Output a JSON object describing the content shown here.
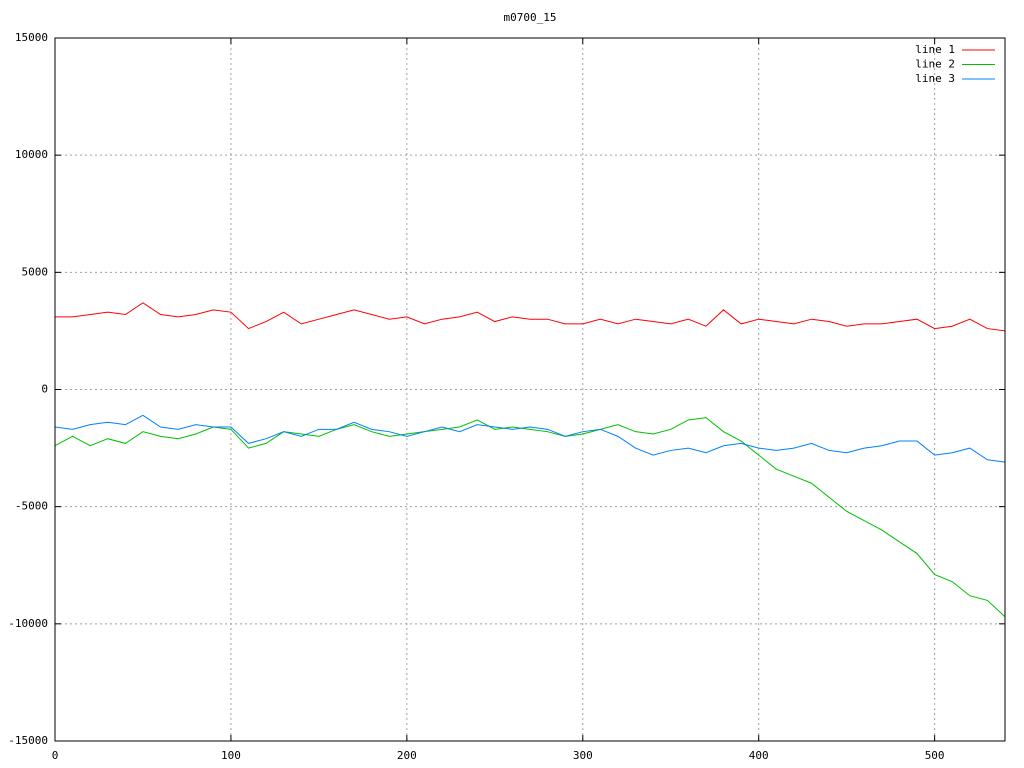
{
  "chart_data": {
    "type": "line",
    "title": "m0700_15",
    "x": [
      0,
      10,
      20,
      30,
      40,
      50,
      60,
      70,
      80,
      90,
      100,
      110,
      120,
      130,
      140,
      150,
      160,
      170,
      180,
      190,
      200,
      210,
      220,
      230,
      240,
      250,
      260,
      270,
      280,
      290,
      300,
      310,
      320,
      330,
      340,
      350,
      360,
      370,
      380,
      390,
      400,
      410,
      420,
      430,
      440,
      450,
      460,
      470,
      480,
      490,
      500,
      510,
      520,
      530,
      540
    ],
    "series": [
      {
        "name": "line 1",
        "color": "#ff0000",
        "values": [
          3100,
          3100,
          3200,
          3300,
          3200,
          3700,
          3200,
          3100,
          3200,
          3400,
          3300,
          2600,
          2900,
          3300,
          2800,
          3000,
          3200,
          3400,
          3200,
          3000,
          3100,
          2800,
          3000,
          3100,
          3300,
          2900,
          3100,
          3000,
          3000,
          2800,
          2800,
          3000,
          2800,
          3000,
          2900,
          2800,
          3000,
          2700,
          3400,
          2800,
          3000,
          2900,
          2800,
          3000,
          2900,
          2700,
          2800,
          2800,
          2900,
          3000,
          2600,
          2700,
          3000,
          2600,
          2500
        ]
      },
      {
        "name": "line 2",
        "color": "#00c000",
        "values": [
          -2400,
          -2000,
          -2400,
          -2100,
          -2300,
          -1800,
          -2000,
          -2100,
          -1900,
          -1600,
          -1700,
          -2500,
          -2300,
          -1800,
          -1900,
          -2000,
          -1700,
          -1500,
          -1800,
          -2000,
          -1900,
          -1800,
          -1700,
          -1600,
          -1300,
          -1700,
          -1600,
          -1700,
          -1800,
          -2000,
          -1900,
          -1700,
          -1500,
          -1800,
          -1900,
          -1700,
          -1300,
          -1200,
          -1800,
          -2200,
          -2800,
          -3400,
          -3700,
          -4000,
          -4600,
          -5200,
          -5600,
          -6000,
          -6500,
          -7000,
          -7900,
          -8200,
          -8800,
          -9000,
          -9700
        ]
      },
      {
        "name": "line 3",
        "color": "#0080ff",
        "values": [
          -1600,
          -1700,
          -1500,
          -1400,
          -1500,
          -1100,
          -1600,
          -1700,
          -1500,
          -1600,
          -1600,
          -2300,
          -2100,
          -1800,
          -2000,
          -1700,
          -1700,
          -1400,
          -1700,
          -1800,
          -2000,
          -1800,
          -1600,
          -1800,
          -1500,
          -1600,
          -1700,
          -1600,
          -1700,
          -2000,
          -1800,
          -1700,
          -2000,
          -2500,
          -2800,
          -2600,
          -2500,
          -2700,
          -2400,
          -2300,
          -2500,
          -2600,
          -2500,
          -2300,
          -2600,
          -2700,
          -2500,
          -2400,
          -2200,
          -2200,
          -2800,
          -2700,
          -2500,
          -3000,
          -3100
        ]
      }
    ],
    "xlim": [
      0,
      540
    ],
    "xticks": [
      0,
      100,
      200,
      300,
      400,
      500
    ],
    "ylim": [
      -15000,
      15000
    ],
    "yticks": [
      -15000,
      -10000,
      -5000,
      0,
      5000,
      10000,
      15000
    ],
    "grid": true,
    "legend": "top-right"
  }
}
